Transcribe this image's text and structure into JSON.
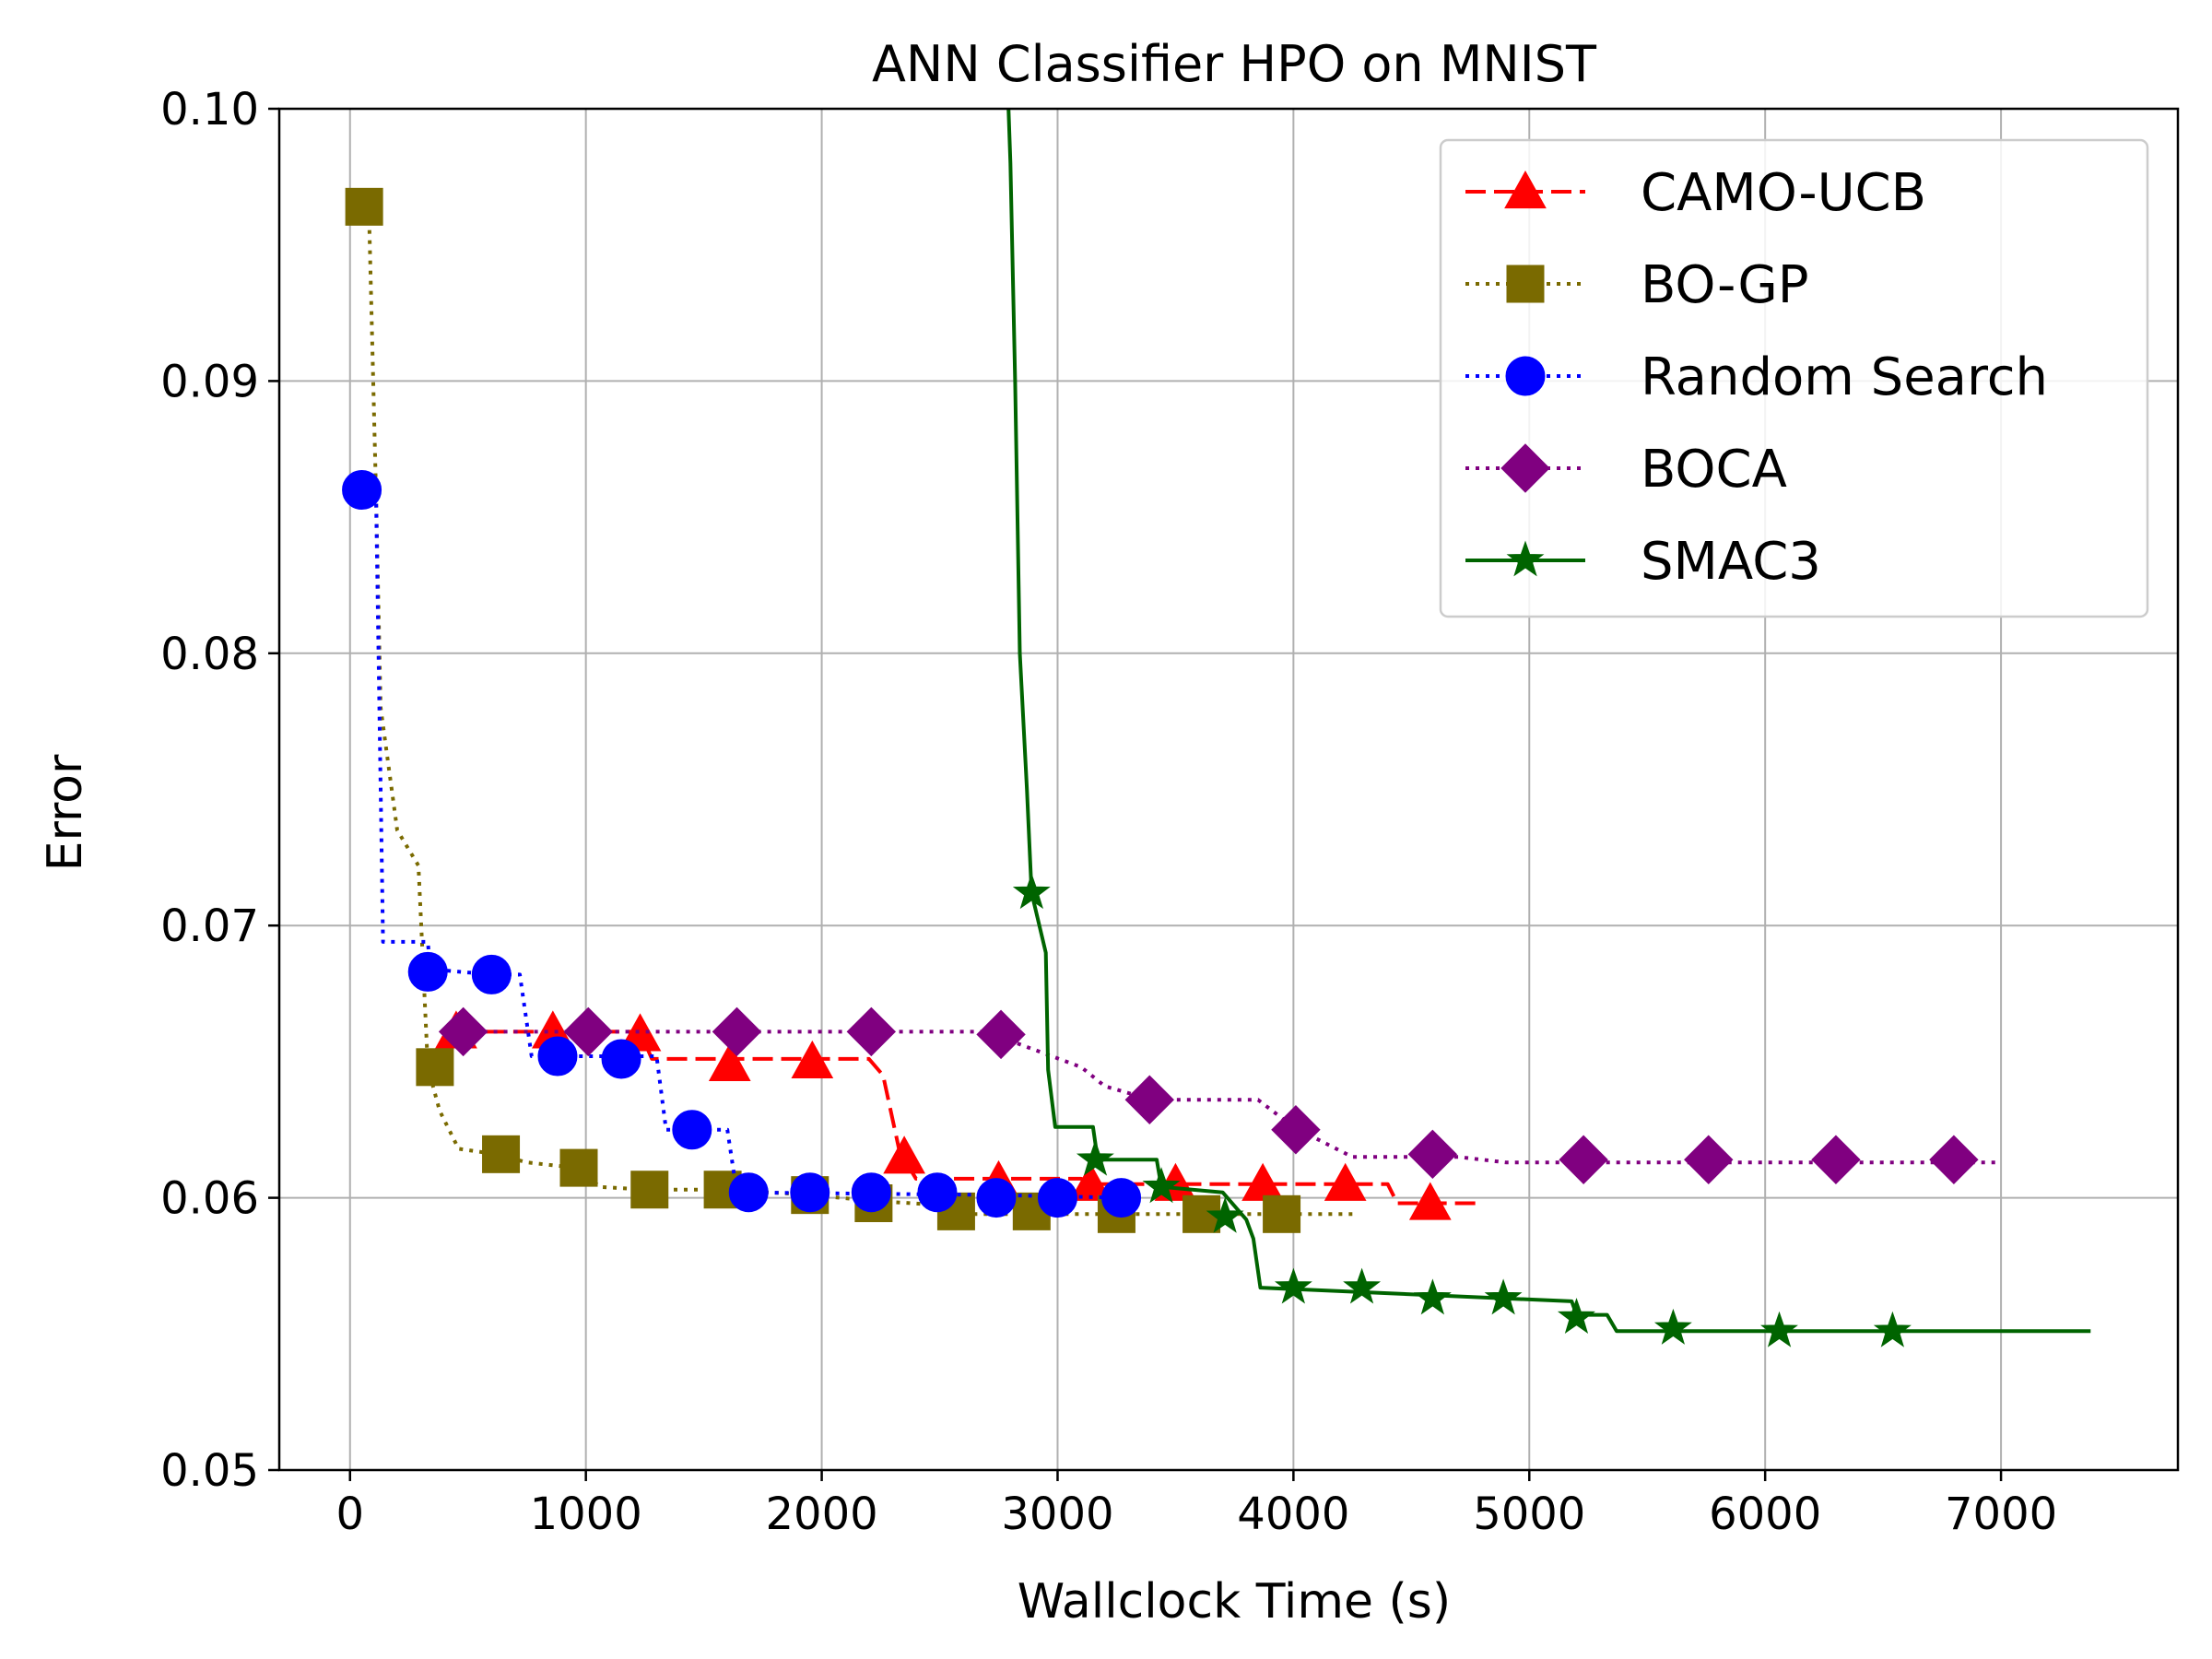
{
  "chart_data": {
    "type": "line",
    "title": "ANN Classifier HPO on MNIST",
    "xlabel": "Wallclock Time (s)",
    "ylabel": "Error",
    "xlim": [
      -300,
      7750
    ],
    "ylim": [
      0.05,
      0.1
    ],
    "xticks": [
      0,
      1000,
      2000,
      3000,
      4000,
      5000,
      6000,
      7000
    ],
    "xtick_labels": [
      "0",
      "1000",
      "2000",
      "3000",
      "4000",
      "5000",
      "6000",
      "7000"
    ],
    "yticks": [
      0.05,
      0.06,
      0.07,
      0.08,
      0.09,
      0.1
    ],
    "ytick_labels": [
      "0.05",
      "0.06",
      "0.07",
      "0.08",
      "0.09",
      "0.10"
    ],
    "grid": true,
    "legend_position": "top-right",
    "series": [
      {
        "name": "CAMO-UCB",
        "color": "#ff0000",
        "linestyle": "dashed",
        "marker": "triangle",
        "line": [
          [
            450,
            0.0661
          ],
          [
            1230,
            0.0661
          ],
          [
            1280,
            0.0651
          ],
          [
            2200,
            0.0651
          ],
          [
            2260,
            0.0645
          ],
          [
            2330,
            0.0617
          ],
          [
            2400,
            0.0607
          ],
          [
            3100,
            0.0607
          ],
          [
            3140,
            0.0605
          ],
          [
            4400,
            0.0605
          ],
          [
            4440,
            0.0598
          ],
          [
            4800,
            0.0598
          ]
        ],
        "markers": [
          [
            450,
            0.0661
          ],
          [
            860,
            0.0661
          ],
          [
            1230,
            0.066
          ],
          [
            1610,
            0.0649
          ],
          [
            1960,
            0.065
          ],
          [
            2350,
            0.0615
          ],
          [
            2750,
            0.0606
          ],
          [
            3140,
            0.0605
          ],
          [
            3500,
            0.0605
          ],
          [
            3870,
            0.0605
          ],
          [
            4220,
            0.0605
          ],
          [
            4580,
            0.0598
          ]
        ]
      },
      {
        "name": "BO-GP",
        "color": "#7a6a00",
        "linestyle": "dotted",
        "marker": "square",
        "line": [
          [
            50,
            0.0964
          ],
          [
            80,
            0.0964
          ],
          [
            110,
            0.086
          ],
          [
            130,
            0.078
          ],
          [
            200,
            0.0735
          ],
          [
            290,
            0.0722
          ],
          [
            330,
            0.0648
          ],
          [
            380,
            0.0632
          ],
          [
            460,
            0.0618
          ],
          [
            620,
            0.0616
          ],
          [
            750,
            0.0613
          ],
          [
            960,
            0.0611
          ],
          [
            1060,
            0.0604
          ],
          [
            1260,
            0.0603
          ],
          [
            1580,
            0.0603
          ],
          [
            1960,
            0.0601
          ],
          [
            2200,
            0.0599
          ],
          [
            2570,
            0.0597
          ],
          [
            2600,
            0.0594
          ],
          [
            4250,
            0.0594
          ]
        ],
        "markers": [
          [
            60,
            0.0964
          ],
          [
            360,
            0.0648
          ],
          [
            640,
            0.0616
          ],
          [
            970,
            0.0611
          ],
          [
            1270,
            0.0603
          ],
          [
            1580,
            0.0603
          ],
          [
            1950,
            0.0601
          ],
          [
            2220,
            0.0598
          ],
          [
            2570,
            0.0595
          ],
          [
            2890,
            0.0595
          ],
          [
            3250,
            0.0594
          ],
          [
            3610,
            0.0594
          ],
          [
            3950,
            0.0594
          ]
        ]
      },
      {
        "name": "Random Search",
        "color": "#0000ff",
        "linestyle": "dotted",
        "marker": "circle",
        "line": [
          [
            40,
            0.086
          ],
          [
            110,
            0.086
          ],
          [
            140,
            0.0694
          ],
          [
            330,
            0.0694
          ],
          [
            340,
            0.0684
          ],
          [
            600,
            0.0682
          ],
          [
            720,
            0.0682
          ],
          [
            770,
            0.0652
          ],
          [
            1150,
            0.0652
          ],
          [
            1300,
            0.0652
          ],
          [
            1340,
            0.0625
          ],
          [
            1600,
            0.0625
          ],
          [
            1640,
            0.0602
          ],
          [
            2750,
            0.0601
          ],
          [
            3270,
            0.06
          ]
        ],
        "markers": [
          [
            50,
            0.086
          ],
          [
            330,
            0.0683
          ],
          [
            600,
            0.0682
          ],
          [
            880,
            0.0652
          ],
          [
            1150,
            0.0651
          ],
          [
            1450,
            0.0625
          ],
          [
            1690,
            0.0602
          ],
          [
            1950,
            0.0602
          ],
          [
            2210,
            0.0602
          ],
          [
            2490,
            0.0602
          ],
          [
            2740,
            0.06
          ],
          [
            3000,
            0.06
          ],
          [
            3270,
            0.06
          ]
        ]
      },
      {
        "name": "BOCA",
        "color": "#800080",
        "linestyle": "dotted",
        "marker": "diamond",
        "line": [
          [
            480,
            0.0661
          ],
          [
            2750,
            0.0661
          ],
          [
            2820,
            0.0657
          ],
          [
            3100,
            0.0648
          ],
          [
            3200,
            0.0641
          ],
          [
            3400,
            0.0636
          ],
          [
            3850,
            0.0636
          ],
          [
            4000,
            0.0626
          ],
          [
            4250,
            0.0615
          ],
          [
            4700,
            0.0615
          ],
          [
            4900,
            0.0613
          ],
          [
            7000,
            0.0613
          ]
        ],
        "markers": [
          [
            480,
            0.0661
          ],
          [
            1010,
            0.0661
          ],
          [
            1640,
            0.0661
          ],
          [
            2210,
            0.0661
          ],
          [
            2760,
            0.066
          ],
          [
            3390,
            0.0636
          ],
          [
            4010,
            0.0625
          ],
          [
            4590,
            0.0616
          ],
          [
            5230,
            0.0614
          ],
          [
            5760,
            0.0614
          ],
          [
            6300,
            0.0614
          ],
          [
            6800,
            0.0614
          ]
        ]
      },
      {
        "name": "SMAC3",
        "color": "#006400",
        "linestyle": "solid",
        "marker": "star",
        "line": [
          [
            2790,
            0.1005
          ],
          [
            2800,
            0.098
          ],
          [
            2820,
            0.09
          ],
          [
            2840,
            0.08
          ],
          [
            2870,
            0.075
          ],
          [
            2890,
            0.0712
          ],
          [
            2950,
            0.069
          ],
          [
            2960,
            0.0647
          ],
          [
            2990,
            0.0626
          ],
          [
            3150,
            0.0626
          ],
          [
            3170,
            0.0614
          ],
          [
            3420,
            0.0614
          ],
          [
            3440,
            0.0604
          ],
          [
            3700,
            0.0602
          ],
          [
            3800,
            0.0592
          ],
          [
            3830,
            0.0585
          ],
          [
            3860,
            0.0567
          ],
          [
            5180,
            0.0562
          ],
          [
            5200,
            0.0557
          ],
          [
            5330,
            0.0557
          ],
          [
            5370,
            0.0551
          ],
          [
            7380,
            0.0551
          ]
        ],
        "markers": [
          [
            2890,
            0.0712
          ],
          [
            3160,
            0.0614
          ],
          [
            3440,
            0.0604
          ],
          [
            3710,
            0.0593
          ],
          [
            4000,
            0.0567
          ],
          [
            4290,
            0.0567
          ],
          [
            4590,
            0.0563
          ],
          [
            4890,
            0.0563
          ],
          [
            5200,
            0.0556
          ],
          [
            5610,
            0.0552
          ],
          [
            6060,
            0.0551
          ],
          [
            6540,
            0.0551
          ]
        ]
      }
    ]
  }
}
